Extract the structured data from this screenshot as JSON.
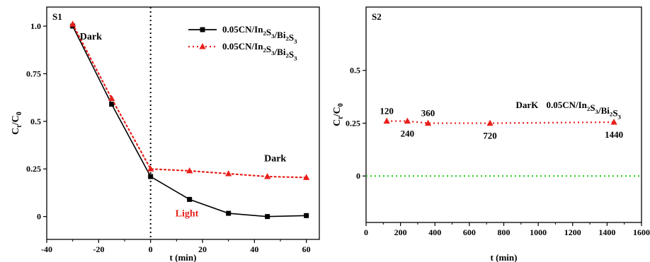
{
  "chart_data": [
    {
      "panel_label": "S1",
      "type": "line",
      "xlabel": "t (min)",
      "ylabel": "C_t/C_0",
      "xlim": [
        -40,
        65
      ],
      "ylim": [
        -0.12,
        1.1
      ],
      "x_ticks": [
        -40,
        -20,
        0,
        20,
        40,
        60
      ],
      "y_ticks": [
        0,
        0.25,
        0.5,
        0.75,
        1.0
      ],
      "x_tick_labels": [
        "-40",
        "-20",
        "0",
        "20",
        "40",
        "60"
      ],
      "y_tick_labels": [
        "0",
        "0.25",
        "0.5",
        "0.75",
        "1.0"
      ],
      "divider_x": 0,
      "series": [
        {
          "name": "0.05CN/In2S3/Bi2S3",
          "marker": "square",
          "line": "solid",
          "color": "#000000",
          "x": [
            -30,
            -15,
            0,
            15,
            30,
            45,
            60
          ],
          "y": [
            1.0,
            0.59,
            0.21,
            0.09,
            0.017,
            0.0,
            0.005
          ]
        },
        {
          "name": "0.05CN/In2S3/Bi2S3",
          "marker": "triangle",
          "line": "dotted",
          "color": "#e8201b",
          "x": [
            -30,
            -15,
            0,
            15,
            30,
            45,
            60
          ],
          "y": [
            1.01,
            0.62,
            0.25,
            0.24,
            0.225,
            0.21,
            0.205
          ]
        }
      ],
      "annotations": [
        {
          "text": "Dark",
          "x": -23,
          "y": 0.93,
          "color": "#000000"
        },
        {
          "text": "Dark",
          "x": 48,
          "y": 0.29,
          "color": "#000000"
        },
        {
          "text": "Light",
          "x": 14,
          "y": 0.0,
          "color": "#e8201b"
        }
      ],
      "legend": {
        "position": "top-right"
      }
    },
    {
      "panel_label": "S2",
      "type": "line",
      "xlabel": "t (min)",
      "ylabel": "C_t/C_0",
      "xlim": [
        0,
        1600
      ],
      "ylim": [
        -0.22,
        0.8
      ],
      "x_ticks": [
        0,
        200,
        400,
        600,
        800,
        1000,
        1200,
        1400,
        1600
      ],
      "y_ticks": [
        0,
        0.25,
        0.5
      ],
      "x_tick_labels": [
        "0",
        "200",
        "400",
        "600",
        "800",
        "1000",
        "1200",
        "1400",
        "1600"
      ],
      "y_tick_labels": [
        "0",
        "0.25",
        "0.5"
      ],
      "reference_line": {
        "y": 0,
        "color": "#2bd32b",
        "line": "dotted"
      },
      "series": [
        {
          "name": "0.05CN/In2S3/Bi2S3",
          "marker": "triangle",
          "line": "dotted",
          "color": "#e8201b",
          "x": [
            120,
            240,
            360,
            720,
            1440
          ],
          "y": [
            0.26,
            0.26,
            0.25,
            0.25,
            0.255
          ]
        }
      ],
      "point_labels": [
        {
          "text": "120",
          "x": 120,
          "pos": "above"
        },
        {
          "text": "240",
          "x": 240,
          "pos": "below"
        },
        {
          "text": "360",
          "x": 360,
          "pos": "above"
        },
        {
          "text": "720",
          "x": 720,
          "pos": "below"
        },
        {
          "text": "1440",
          "x": 1440,
          "pos": "below"
        }
      ],
      "series_label": {
        "prefix": "DarK",
        "text": "0.05CN/In2S3/Bi2S3",
        "x": 1100,
        "y": 0.335
      }
    }
  ]
}
